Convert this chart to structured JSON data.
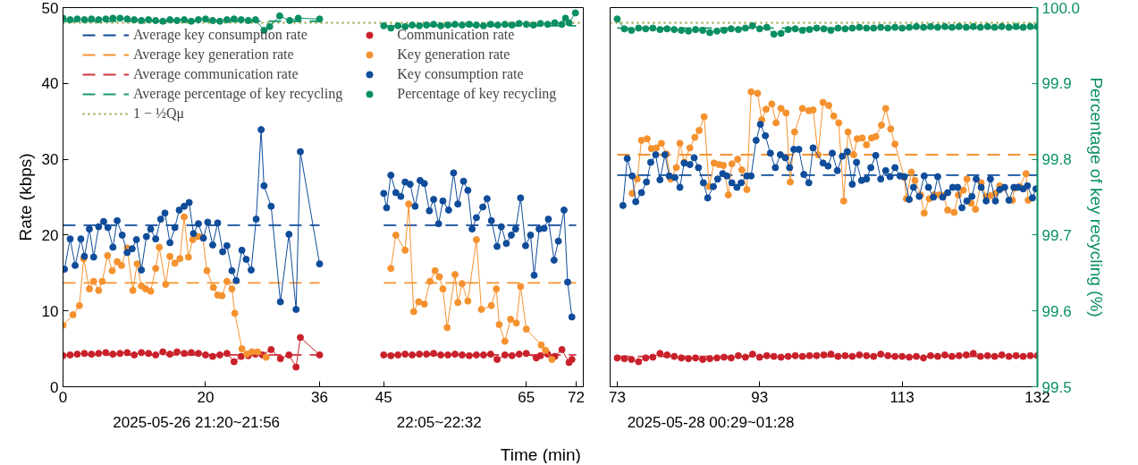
{
  "chart_data": [
    {
      "type": "line",
      "xlabel": "Time (min)",
      "ylabel": "Rate (kbps)",
      "xlim": [
        0,
        73
      ],
      "xticks": [
        0,
        20,
        36,
        45,
        65,
        72
      ],
      "ylim": [
        0,
        50
      ],
      "yticks": [
        0,
        10,
        20,
        30,
        40,
        50
      ],
      "y2lim": [
        99.5,
        100
      ],
      "legend": "top left",
      "annotations": [
        "2025-05-26 21:20~21:56",
        "22:05~22:32"
      ],
      "ref_lines": [
        {
          "axis": "y2",
          "value": 99.98,
          "label": "1 − ½Qμ",
          "color": "#8d9a2e",
          "line_style": "dotted"
        }
      ],
      "series": [
        {
          "name": "Average key consumption rate",
          "line_style": "dashed",
          "marker": "none",
          "color": "#0f4c9a",
          "x": [
            0,
            36,
            40,
            45,
            72
          ],
          "values": [
            21.3,
            21.3,
            null,
            21.3,
            21.3
          ]
        },
        {
          "name": "Average key generation rate",
          "line_style": "dashed",
          "marker": "none",
          "color": "#f5922f",
          "x": [
            0,
            36,
            40,
            45,
            72
          ],
          "values": [
            13.7,
            13.7,
            null,
            13.7,
            13.7
          ]
        },
        {
          "name": "Average communication rate",
          "line_style": "dashed",
          "marker": "none",
          "color": "#d2363f",
          "x": [
            0,
            36,
            40,
            45,
            72
          ],
          "values": [
            4.2,
            4.2,
            null,
            4.2,
            4.2
          ]
        },
        {
          "name": "Average percentage of key recycling",
          "line_style": "dashed",
          "marker": "none",
          "axis": "y2",
          "color": "#1a9a70",
          "x": [
            0,
            36,
            40,
            45,
            72
          ],
          "values": [
            99.982,
            99.982,
            null,
            99.976,
            99.976
          ]
        },
        {
          "name": "Communication rate",
          "marker": "circle",
          "color": "#c9212b",
          "x": [
            0,
            1,
            2,
            3,
            4,
            5,
            6,
            7,
            8,
            9,
            10,
            11,
            12,
            13,
            14,
            15,
            16,
            17,
            18,
            19,
            20,
            21,
            22,
            23,
            24,
            25,
            26,
            27,
            28,
            29.2,
            30.5,
            31.7,
            32.7,
            33.3,
            36,
            40,
            45,
            46,
            47,
            48,
            49,
            50,
            51,
            52,
            53,
            54,
            55,
            56,
            57,
            58,
            59,
            60,
            60.9,
            62,
            63,
            64,
            65,
            66.4,
            67,
            68,
            69,
            70,
            71,
            71.4
          ],
          "values": [
            4.1,
            4.2,
            4.3,
            4.4,
            4.3,
            4.4,
            4.5,
            4.3,
            4.4,
            4.5,
            4.2,
            4.5,
            4.4,
            4.2,
            4.6,
            4.3,
            4.6,
            4.4,
            4.5,
            4.4,
            4.2,
            4.0,
            4.2,
            4.4,
            3.3,
            4.0,
            4.1,
            4.3,
            4.2,
            4.9,
            3.7,
            4.2,
            2.6,
            6.5,
            4.2,
            null,
            4.2,
            4.1,
            4.2,
            4.3,
            4.2,
            4.3,
            4.3,
            4.4,
            4.2,
            4.2,
            4.3,
            4.2,
            4.1,
            4.2,
            4.2,
            4.3,
            3.6,
            4.2,
            4.1,
            4.3,
            4.4,
            3.8,
            4.1,
            4.3,
            4.0,
            4.9,
            3.2,
            3.6
          ]
        },
        {
          "name": "Key generation rate",
          "marker": "circle",
          "color": "#f5922f",
          "x": [
            0,
            1.4,
            2.3,
            2.9,
            3.7,
            4.3,
            5,
            5.5,
            6.25,
            6.9,
            7.6,
            8.2,
            9,
            9.8,
            10.4,
            11,
            11.6,
            12.3,
            13,
            13.5,
            14.4,
            15,
            15.7,
            16.4,
            17,
            17.6,
            18.2,
            19,
            19.6,
            20.2,
            21.1,
            21.7,
            22.3,
            23,
            23.7,
            24.1,
            25.1,
            25.8,
            26.5,
            27.3,
            28.5,
            40,
            46,
            46.7,
            48,
            48.5,
            49.2,
            49.9,
            50.7,
            51.5,
            52.2,
            52.8,
            53.3,
            53.9,
            55,
            55.4,
            56,
            56.8,
            58,
            58.7,
            60.1,
            60.8,
            61.2,
            62,
            62.8,
            63.6,
            64.2,
            65,
            67.1,
            67.7,
            68.6
          ],
          "values": [
            8.1,
            9.5,
            10.7,
            16.9,
            12.9,
            13.9,
            12.7,
            13.9,
            17.3,
            15.3,
            16.5,
            16.0,
            18.3,
            12.7,
            16.2,
            13.3,
            12.9,
            12.6,
            15.6,
            18.4,
            13.5,
            17.2,
            16.3,
            16.9,
            22.4,
            17.1,
            19.4,
            19.8,
            19.7,
            15.3,
            13.1,
            12.1,
            12.0,
            13.9,
            12.9,
            9.7,
            5.0,
            4.3,
            4.6,
            4.6,
            3.9,
            null,
            15.6,
            20.0,
            18.0,
            24.1,
            9.9,
            11.2,
            10.9,
            13.9,
            15.3,
            14.5,
            12.9,
            7.8,
            14.8,
            11.1,
            13.6,
            11.3,
            19.4,
            10.2,
            10.7,
            12.9,
            8.2,
            6.0,
            8.9,
            8.4,
            13.2,
            7.6,
            5.5,
            4.8,
            3.6
          ]
        },
        {
          "name": "Key consumption rate",
          "marker": "circle",
          "color": "#0f4c9a",
          "x": [
            0.2,
            1,
            1.7,
            2.5,
            3,
            3.7,
            4.3,
            5,
            5.7,
            6.3,
            7,
            7.6,
            8.3,
            9,
            9.7,
            10.3,
            11,
            11.7,
            12.3,
            13,
            13.7,
            14.3,
            15,
            15.7,
            16.3,
            17,
            17.7,
            18.3,
            19,
            19.7,
            20.3,
            21,
            21.7,
            22.4,
            23,
            23.7,
            24.3,
            25.1,
            25.7,
            26.4,
            27.1,
            27.8,
            28.2,
            29.2,
            30.5,
            31.7,
            32.7,
            33.3,
            36,
            40,
            45,
            45.4,
            46,
            46.7,
            47.4,
            48,
            48.7,
            49.4,
            50.1,
            50.7,
            51.4,
            52,
            52.7,
            53.3,
            54.1,
            54.8,
            55.4,
            56.2,
            56.8,
            57.4,
            58,
            58.9,
            59.5,
            60.1,
            60.9,
            61.5,
            62.2,
            62.9,
            63.5,
            64.2,
            64.9,
            65.6,
            66.1,
            66.8,
            67.5,
            68.1,
            68.9,
            69.5,
            70.3,
            70.8,
            71.4
          ],
          "values": [
            15.5,
            19.5,
            16.0,
            19.5,
            17.2,
            20.8,
            17.1,
            21.1,
            21.8,
            21.0,
            18.4,
            21.9,
            20.0,
            17.7,
            18.2,
            19.4,
            15.4,
            19.8,
            20.8,
            19.5,
            22.1,
            22.9,
            19.0,
            21.0,
            23.3,
            23.8,
            24.3,
            20.2,
            21.5,
            19.6,
            21.7,
            18.7,
            21.6,
            17.8,
            18.6,
            15.3,
            14.0,
            18.0,
            16.8,
            15.4,
            22.1,
            33.9,
            26.5,
            23.8,
            11.2,
            20.1,
            10.2,
            31.0,
            16.2,
            null,
            25.5,
            23.6,
            27.9,
            25.6,
            25.1,
            27.0,
            26.7,
            23.8,
            27.2,
            26.8,
            23.2,
            24.7,
            21.5,
            24.5,
            23.3,
            28.2,
            24.1,
            27.1,
            25.9,
            20.8,
            22.3,
            23.7,
            24.8,
            21.9,
            18.5,
            21.1,
            18.9,
            20.0,
            20.8,
            24.9,
            18.6,
            20.0,
            14.7,
            20.8,
            20.9,
            22.1,
            16.7,
            19.2,
            23.3,
            13.8,
            9.2
          ]
        },
        {
          "name": "Percentage of key recycling",
          "marker": "circle",
          "axis": "y2",
          "color": "#0a8f63",
          "x": [
            0,
            1,
            2,
            3,
            4,
            5,
            6,
            7,
            8,
            9,
            10,
            11,
            12,
            13,
            14,
            15,
            16,
            17,
            18,
            19,
            20,
            21,
            22,
            23,
            24,
            25,
            26,
            27,
            28.2,
            29,
            30.4,
            31.8,
            33,
            36,
            40,
            45,
            46,
            47,
            48,
            49,
            50,
            51,
            52,
            53,
            54,
            55,
            56,
            57,
            58,
            59,
            60,
            61,
            62,
            63,
            64,
            65,
            66,
            67,
            68,
            69,
            70,
            70.5,
            71,
            71.9
          ],
          "values": [
            99.986,
            99.984,
            99.985,
            99.984,
            99.985,
            99.984,
            99.985,
            99.986,
            99.986,
            99.985,
            99.984,
            99.983,
            99.984,
            99.983,
            99.982,
            99.984,
            99.983,
            99.984,
            99.982,
            99.984,
            99.985,
            99.983,
            99.982,
            99.984,
            99.985,
            99.984,
            99.983,
            99.984,
            99.97,
            99.975,
            99.989,
            99.983,
            99.986,
            99.985,
            null,
            99.976,
            99.973,
            99.976,
            99.975,
            99.977,
            99.976,
            99.977,
            99.978,
            99.976,
            99.977,
            99.978,
            99.977,
            99.978,
            99.977,
            99.976,
            99.978,
            99.977,
            99.978,
            99.977,
            99.979,
            99.978,
            99.977,
            99.979,
            99.978,
            99.98,
            99.978,
            99.986,
            99.98,
            99.993
          ]
        }
      ]
    },
    {
      "type": "line",
      "xlim": [
        72,
        132
      ],
      "xticks": [
        73,
        93,
        113,
        132
      ],
      "ylim": [
        0,
        50
      ],
      "y2lim": [
        99.5,
        100
      ],
      "y2ticks": [
        99.5,
        99.6,
        99.7,
        99.8,
        99.9,
        {
          "value": 100,
          "label": "100.0"
        }
      ],
      "y2label": "Percentage of key recycling (%)",
      "annotations": [
        "2025-05-28 00:29~01:28"
      ],
      "ref_lines": [
        {
          "axis": "y2",
          "value": 99.98,
          "color": "#8d9a2e",
          "line_style": "dotted"
        }
      ],
      "series": [
        {
          "line_style": "dashed",
          "marker": "none",
          "color": "#0f4c9a",
          "x": [
            73,
            132
          ],
          "values": [
            27.9,
            27.9
          ]
        },
        {
          "line_style": "dashed",
          "marker": "none",
          "color": "#f5922f",
          "x": [
            73,
            132
          ],
          "values": [
            30.6,
            30.6
          ]
        },
        {
          "line_style": "dashed",
          "marker": "none",
          "color": "#d2363f",
          "x": [
            73,
            132
          ],
          "values": [
            4.0,
            4.0
          ]
        },
        {
          "line_style": "dashed",
          "marker": "none",
          "axis": "y2",
          "color": "#1a9a70",
          "x": [
            73,
            132
          ],
          "values": [
            99.973,
            99.973
          ]
        },
        {
          "marker": "circle",
          "color": "#c9212b",
          "x": [
            73,
            74,
            75,
            76,
            77,
            78,
            79,
            80,
            81,
            82,
            83,
            84,
            85,
            86,
            87,
            88,
            89,
            90,
            91,
            92,
            93,
            94,
            95,
            96,
            97,
            98,
            99,
            100,
            101,
            102,
            103,
            104,
            105,
            106,
            107,
            108,
            109,
            110,
            111,
            112,
            113,
            114,
            115,
            116,
            117,
            118,
            119,
            120,
            121,
            122,
            123,
            124,
            125,
            126,
            127,
            128,
            129,
            130,
            131,
            132
          ],
          "values": [
            3.8,
            3.7,
            3.6,
            3.3,
            3.8,
            3.9,
            4.4,
            4.2,
            4.0,
            3.8,
            3.7,
            3.8,
            3.6,
            3.7,
            3.8,
            3.9,
            3.8,
            4.1,
            3.9,
            4.3,
            3.9,
            4.1,
            4.0,
            3.9,
            4.0,
            4.1,
            4.0,
            4.1,
            4.1,
            4.2,
            4.3,
            4.0,
            4.1,
            4.0,
            4.2,
            4.1,
            4.0,
            4.3,
            4.1,
            4.0,
            4.0,
            3.9,
            4.0,
            3.8,
            4.1,
            4.0,
            4.2,
            4.0,
            4.1,
            4.2,
            4.4,
            4.0,
            4.1,
            4.0,
            4.2,
            4.0,
            4.1,
            4.0,
            4.1,
            4.1
          ]
        },
        {
          "marker": "circle",
          "color": "#f5922f",
          "x": [
            75.1,
            75.8,
            76.4,
            77.2,
            77.8,
            78.5,
            79.2,
            79.9,
            80.5,
            81.3,
            81.8,
            82.4,
            83.2,
            83.9,
            84.5,
            85.2,
            85.9,
            86.6,
            87.3,
            87.9,
            88.6,
            89.1,
            89.9,
            90.5,
            91.2,
            91.8,
            92.7,
            93.3,
            93.9,
            94.7,
            95.3,
            96,
            96.7,
            97.3,
            97.9,
            99,
            99.9,
            100.5,
            101.2,
            101.9,
            102.7,
            103.4,
            104.1,
            104.8,
            105.4,
            106.2,
            106.7,
            107.4,
            108,
            108.7,
            109.3,
            110.1,
            110.7,
            111.4,
            112,
            113.3,
            113.6,
            114.3,
            114.8,
            115.6,
            116.1,
            116.8,
            117.5,
            118.2,
            118.8,
            119.4,
            120.3,
            120.9,
            121.6,
            122.1,
            122.7,
            123.3,
            124.1,
            124.8,
            125.4,
            126.1,
            126.7,
            128.5,
            128.8,
            129.5,
            130.4,
            130.7
          ],
          "values": [
            25.5,
            27.4,
            32.5,
            32.7,
            31.4,
            31.5,
            32.1,
            30.7,
            27.4,
            28.9,
            32.1,
            29.6,
            31.5,
            32.9,
            33.8,
            35.6,
            26.4,
            29.5,
            29.3,
            29.2,
            25.3,
            29.4,
            30.0,
            28.6,
            26.0,
            38.9,
            38.7,
            35.2,
            36.6,
            37.3,
            34.8,
            36.7,
            36.1,
            27.0,
            33.6,
            36.7,
            36.4,
            36.5,
            30.6,
            37.5,
            37.1,
            35.7,
            34.8,
            24.5,
            33.6,
            30.6,
            32.7,
            32.8,
            31.9,
            32.8,
            33.0,
            34.5,
            36.7,
            34.0,
            32.0,
            27.6,
            24.8,
            28.3,
            27.2,
            25.3,
            22.9,
            24.8,
            25.3,
            25.3,
            25.2,
            23.3,
            23.0,
            25.3,
            25.9,
            27.4,
            24.2,
            23.4,
            26.9,
            25.1,
            25.2,
            25.5,
            26.5,
            24.6,
            26.2,
            26.4,
            28.1,
            24.6
          ]
        },
        {
          "marker": "circle",
          "color": "#0f4c9a",
          "x": [
            73.8,
            74.4,
            75.1,
            75.6,
            76.4,
            77.1,
            77.7,
            78.4,
            79,
            79.7,
            80.3,
            81.1,
            81.8,
            82.4,
            83.2,
            83.8,
            84.4,
            85.1,
            85.7,
            86.5,
            87.1,
            87.8,
            88.4,
            89.1,
            89.8,
            90.4,
            91.2,
            91.8,
            92.5,
            93.1,
            93.8,
            94.5,
            95.2,
            95.9,
            96.6,
            97.2,
            97.8,
            98.5,
            99.2,
            99.9,
            100.5,
            101.9,
            102.6,
            103.2,
            103.9,
            104.6,
            105.3,
            106,
            106.6,
            107.3,
            108,
            108.6,
            109.3,
            110,
            110.7,
            111.3,
            112,
            112.7,
            113.3,
            114,
            114.6,
            115.4,
            116.1,
            116.7,
            117.4,
            118,
            118.7,
            119.4,
            120.1,
            120.8,
            121.4,
            122.1,
            122.8,
            123.4,
            124.1,
            124.8,
            125.4,
            126.1,
            126.7,
            127.4,
            128,
            128.7,
            129.3,
            130,
            130.6,
            131.3,
            131.8
          ],
          "values": [
            23.9,
            30.1,
            27.8,
            24.4,
            25.6,
            27.0,
            29.6,
            30.6,
            27.3,
            30.6,
            27.8,
            27.6,
            26.3,
            29.5,
            29.3,
            30.2,
            28.9,
            26.9,
            24.9,
            26.4,
            27.4,
            28.1,
            27.8,
            26.9,
            26.3,
            26.9,
            27.8,
            27.8,
            32.5,
            34.6,
            33.1,
            30.8,
            28.9,
            30.6,
            30.2,
            28.9,
            31.3,
            31.3,
            28.0,
            26.9,
            31.5,
            29.5,
            29.1,
            30.8,
            28.5,
            30.4,
            31.0,
            26.7,
            29.6,
            27.2,
            27.4,
            28.9,
            30.5,
            27.4,
            28.5,
            27.7,
            28.9,
            27.8,
            27.7,
            24.7,
            26.3,
            25.1,
            27.8,
            26.3,
            25.0,
            27.7,
            25.0,
            25.6,
            26.3,
            26.3,
            23.6,
            24.5,
            25.1,
            27.4,
            26.3,
            24.5,
            27.4,
            24.5,
            26.0,
            26.3,
            24.6,
            26.3,
            26.3,
            26.1,
            26.5,
            24.9,
            26.1
          ]
        },
        {
          "marker": "circle",
          "axis": "y2",
          "color": "#0a8f63",
          "x": [
            73,
            74,
            75,
            76,
            77,
            78,
            79,
            80,
            81,
            82,
            83,
            84,
            85,
            86,
            87,
            88,
            89,
            90,
            91,
            92,
            93,
            94,
            95,
            96,
            97,
            98,
            99,
            100,
            101,
            102,
            103,
            104,
            105,
            106,
            107,
            108,
            109,
            110,
            111,
            112,
            113,
            114,
            115,
            116,
            117,
            118,
            119,
            120,
            121,
            122,
            123,
            124,
            125,
            126,
            127,
            128,
            129,
            130,
            131,
            132
          ],
          "values": [
            99.985,
            99.972,
            99.97,
            99.973,
            99.972,
            99.973,
            99.971,
            99.972,
            99.971,
            99.97,
            99.969,
            99.971,
            99.97,
            99.967,
            99.969,
            99.97,
            99.972,
            99.971,
            99.973,
            99.976,
            99.972,
            99.974,
            99.965,
            99.966,
            99.971,
            99.972,
            99.97,
            99.971,
            99.973,
            99.972,
            99.97,
            99.973,
            99.972,
            99.973,
            99.974,
            99.973,
            99.973,
            99.974,
            99.973,
            99.974,
            99.973,
            99.974,
            99.975,
            99.974,
            99.975,
            99.974,
            99.975,
            99.974,
            99.975,
            99.974,
            99.975,
            99.974,
            99.975,
            99.974,
            99.975,
            99.974,
            99.975,
            99.974,
            99.975,
            99.975
          ]
        }
      ]
    }
  ]
}
